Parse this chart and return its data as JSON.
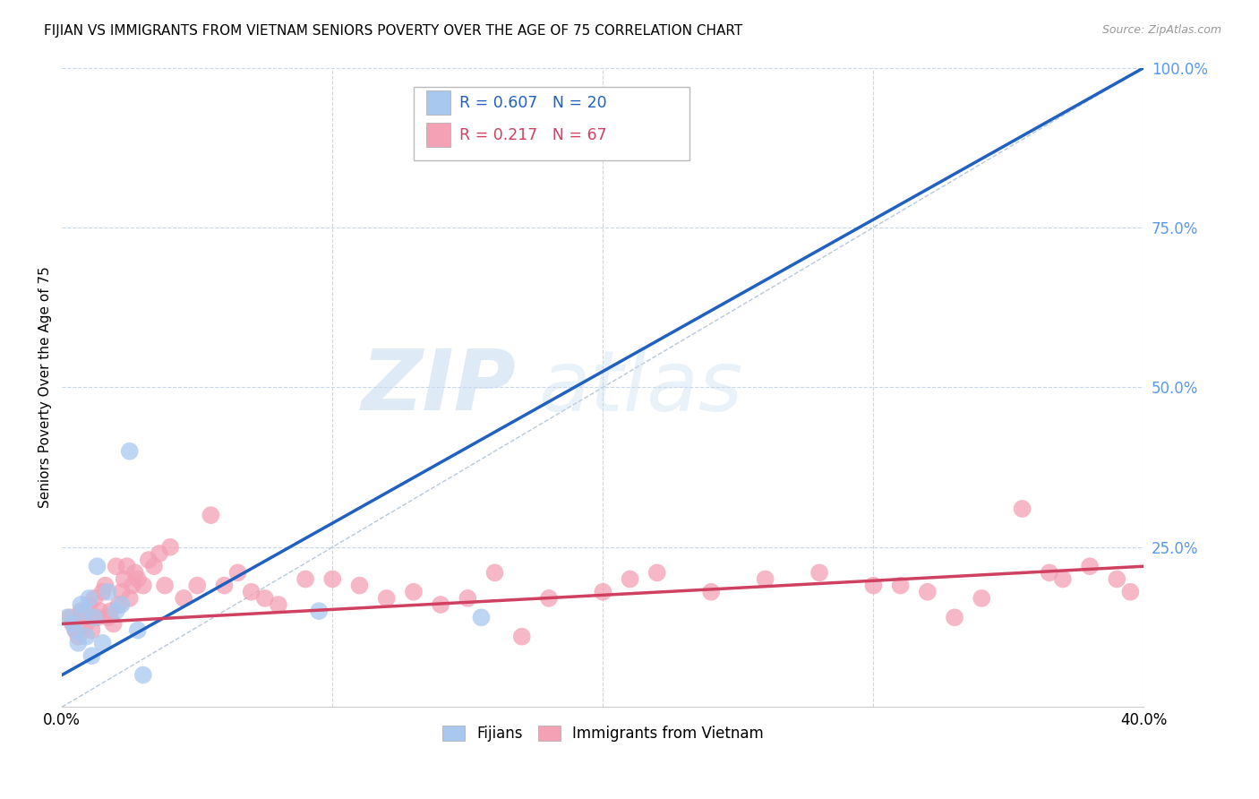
{
  "title": "FIJIAN VS IMMIGRANTS FROM VIETNAM SENIORS POVERTY OVER THE AGE OF 75 CORRELATION CHART",
  "source": "Source: ZipAtlas.com",
  "ylabel": "Seniors Poverty Over the Age of 75",
  "xlim": [
    0.0,
    0.4
  ],
  "ylim": [
    0.0,
    1.0
  ],
  "fijian_color": "#A8C8F0",
  "vietnam_color": "#F4A0B5",
  "fijian_line_color": "#2060C0",
  "vietnam_line_color": "#D04060",
  "diagonal_color": "#B8C8D8",
  "R_fijian": 0.607,
  "N_fijian": 20,
  "R_vietnam": 0.217,
  "N_vietnam": 67,
  "legend_label_fijian": "Fijians",
  "legend_label_vietnam": "Immigrants from Vietnam",
  "watermark_zip": "ZIP",
  "watermark_atlas": "atlas",
  "fijian_x": [
    0.002,
    0.004,
    0.005,
    0.006,
    0.007,
    0.008,
    0.009,
    0.01,
    0.011,
    0.012,
    0.013,
    0.015,
    0.017,
    0.02,
    0.022,
    0.025,
    0.028,
    0.03,
    0.095,
    0.155
  ],
  "fijian_y": [
    0.14,
    0.13,
    0.12,
    0.1,
    0.16,
    0.15,
    0.11,
    0.17,
    0.08,
    0.14,
    0.22,
    0.1,
    0.18,
    0.15,
    0.16,
    0.4,
    0.12,
    0.05,
    0.15,
    0.14
  ],
  "vietnam_x": [
    0.003,
    0.004,
    0.005,
    0.006,
    0.007,
    0.008,
    0.009,
    0.01,
    0.011,
    0.012,
    0.013,
    0.014,
    0.015,
    0.016,
    0.017,
    0.018,
    0.019,
    0.02,
    0.021,
    0.022,
    0.023,
    0.024,
    0.025,
    0.026,
    0.027,
    0.028,
    0.03,
    0.032,
    0.034,
    0.036,
    0.038,
    0.04,
    0.045,
    0.05,
    0.055,
    0.06,
    0.065,
    0.07,
    0.075,
    0.08,
    0.09,
    0.1,
    0.11,
    0.12,
    0.13,
    0.14,
    0.15,
    0.16,
    0.17,
    0.18,
    0.2,
    0.21,
    0.22,
    0.24,
    0.26,
    0.28,
    0.3,
    0.31,
    0.32,
    0.33,
    0.34,
    0.355,
    0.365,
    0.37,
    0.38,
    0.39,
    0.395
  ],
  "vietnam_y": [
    0.14,
    0.13,
    0.12,
    0.11,
    0.15,
    0.14,
    0.13,
    0.16,
    0.12,
    0.17,
    0.14,
    0.15,
    0.18,
    0.19,
    0.14,
    0.15,
    0.13,
    0.22,
    0.16,
    0.18,
    0.2,
    0.22,
    0.17,
    0.19,
    0.21,
    0.2,
    0.19,
    0.23,
    0.22,
    0.24,
    0.19,
    0.25,
    0.17,
    0.19,
    0.3,
    0.19,
    0.21,
    0.18,
    0.17,
    0.16,
    0.2,
    0.2,
    0.19,
    0.17,
    0.18,
    0.16,
    0.17,
    0.21,
    0.11,
    0.17,
    0.18,
    0.2,
    0.21,
    0.18,
    0.2,
    0.21,
    0.19,
    0.19,
    0.18,
    0.14,
    0.17,
    0.31,
    0.21,
    0.2,
    0.22,
    0.2,
    0.18
  ],
  "fijian_line_x0": 0.0,
  "fijian_line_y0": 0.05,
  "fijian_line_x1": 0.4,
  "fijian_line_y1": 1.0,
  "vietnam_line_x0": 0.0,
  "vietnam_line_y0": 0.13,
  "vietnam_line_x1": 0.4,
  "vietnam_line_y1": 0.22
}
